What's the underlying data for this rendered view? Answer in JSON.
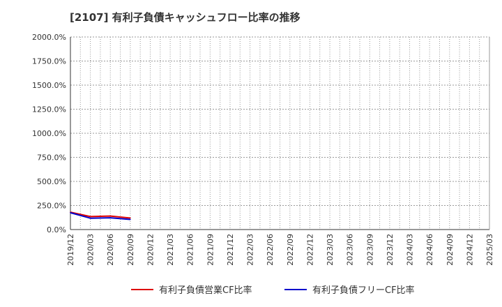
{
  "chart_data": {
    "type": "line",
    "title": "[2107]  有利子負債キャッシュフロー比率の推移",
    "xlabel": "",
    "ylabel": "",
    "ylim": [
      0,
      2000
    ],
    "y_ticks": [
      "2000.0%",
      "1750.0%",
      "1500.0%",
      "1250.0%",
      "1000.0%",
      "750.0%",
      "500.0%",
      "250.0%",
      "0.0%"
    ],
    "y_tick_values": [
      2000,
      1750,
      1500,
      1250,
      1000,
      750,
      500,
      250,
      0
    ],
    "x_ticks": [
      "2019/12",
      "2020/03",
      "2020/06",
      "2020/09",
      "2020/12",
      "2021/03",
      "2021/06",
      "2021/09",
      "2021/12",
      "2022/03",
      "2022/06",
      "2022/09",
      "2022/12",
      "2023/03",
      "2023/06",
      "2023/09",
      "2023/12",
      "2024/03",
      "2024/06",
      "2024/09",
      "2024/12",
      "2025/03"
    ],
    "grid": true,
    "legend_position": "bottom",
    "series": [
      {
        "name": "有利子負債営業CF比率",
        "color": "#dd0000",
        "x_index": [
          0,
          1,
          2,
          3
        ],
        "values": [
          180,
          135,
          140,
          120
        ]
      },
      {
        "name": "有利子負債フリーCF比率",
        "color": "#0000cc",
        "x_index": [
          0,
          1,
          2,
          3
        ],
        "values": [
          175,
          118,
          122,
          105
        ]
      }
    ]
  }
}
